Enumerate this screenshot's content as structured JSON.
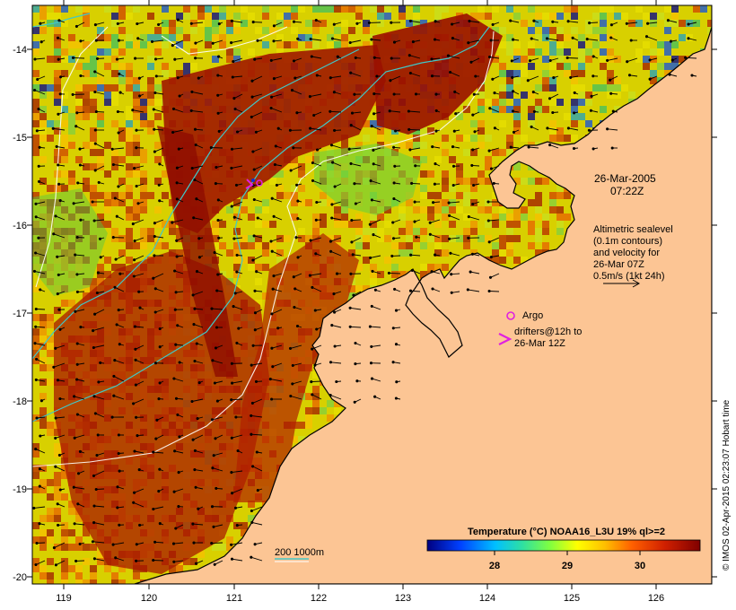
{
  "map": {
    "x_ticks": [
      "119",
      "120",
      "121",
      "122",
      "123",
      "124",
      "125",
      "126"
    ],
    "y_ticks": [
      "-14",
      "-15",
      "-16",
      "-17",
      "-18",
      "-19",
      "-20"
    ],
    "lon_range": [
      118.6,
      126.7
    ],
    "lat_range": [
      -20.1,
      -13.5
    ]
  },
  "annotations": {
    "date_line1": "26-Mar-2005",
    "date_line2": "07:22Z",
    "alt_line1": "Altimetric sealevel",
    "alt_line2": "(0.1m contours)",
    "alt_line3": "and velocity for",
    "alt_line4": "26-Mar 07Z",
    "alt_line5": "0.5m/s (1kt 24h)",
    "argo_label": "Argo",
    "drifter_line1": "drifters@12h to",
    "drifter_line2": "26-Mar 12Z",
    "isobath_label": "200  1000m"
  },
  "colorbar": {
    "title": "Temperature (°C) NOAA16_L3U 19% ql>=2",
    "ticks": [
      "28",
      "29",
      "30"
    ]
  },
  "credit": "© IMOS 02-Apr-2015 02:23:07 Hobart time",
  "colors": {
    "land": "#fcc594",
    "warm": "#a61500",
    "argo": "#e020e0",
    "isobath": "#40c8c8"
  }
}
